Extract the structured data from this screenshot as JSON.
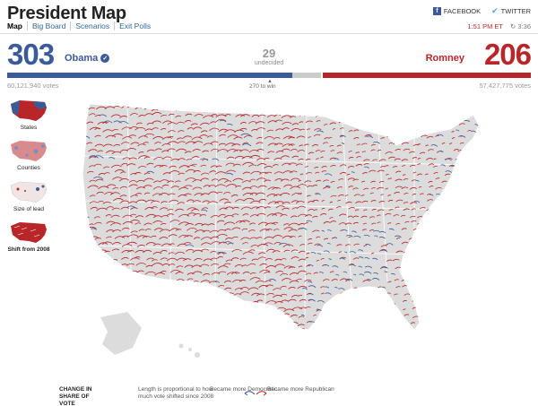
{
  "header": {
    "title": "President Map",
    "facebook": "FACEBOOK",
    "twitter": "TWITTER"
  },
  "nav": {
    "tabs": [
      "Map",
      "Big Board",
      "Scenarios",
      "Exit Polls"
    ],
    "active": "Map"
  },
  "status": {
    "time": "1:51 PM ET",
    "refresh": "3:36"
  },
  "results": {
    "dem": {
      "electoral": "303",
      "name": "Obama",
      "votes": "60,121,940 votes",
      "color": "#3b5a9a"
    },
    "rep": {
      "electoral": "206",
      "name": "Romney",
      "votes": "57,427,775 votes",
      "color": "#b8262a"
    },
    "undecided": {
      "count": "29",
      "label": "undecided"
    },
    "to_win": "270 to win"
  },
  "sidebar": {
    "views": [
      {
        "label": "States",
        "active": false
      },
      {
        "label": "Counties",
        "active": false
      },
      {
        "label": "Size of lead",
        "active": false
      },
      {
        "label": "Shift from 2008",
        "active": true
      }
    ]
  },
  "legend": {
    "title": "CHANGE IN SHARE OF VOTE",
    "description": "Length is proportional to how much vote shifted since 2008",
    "democratic": "Became more Democratic",
    "republican": "Became more Republican"
  },
  "colors": {
    "democratic": "#3b5a9a",
    "republican": "#b8262a",
    "land": "#dcdcdc"
  }
}
